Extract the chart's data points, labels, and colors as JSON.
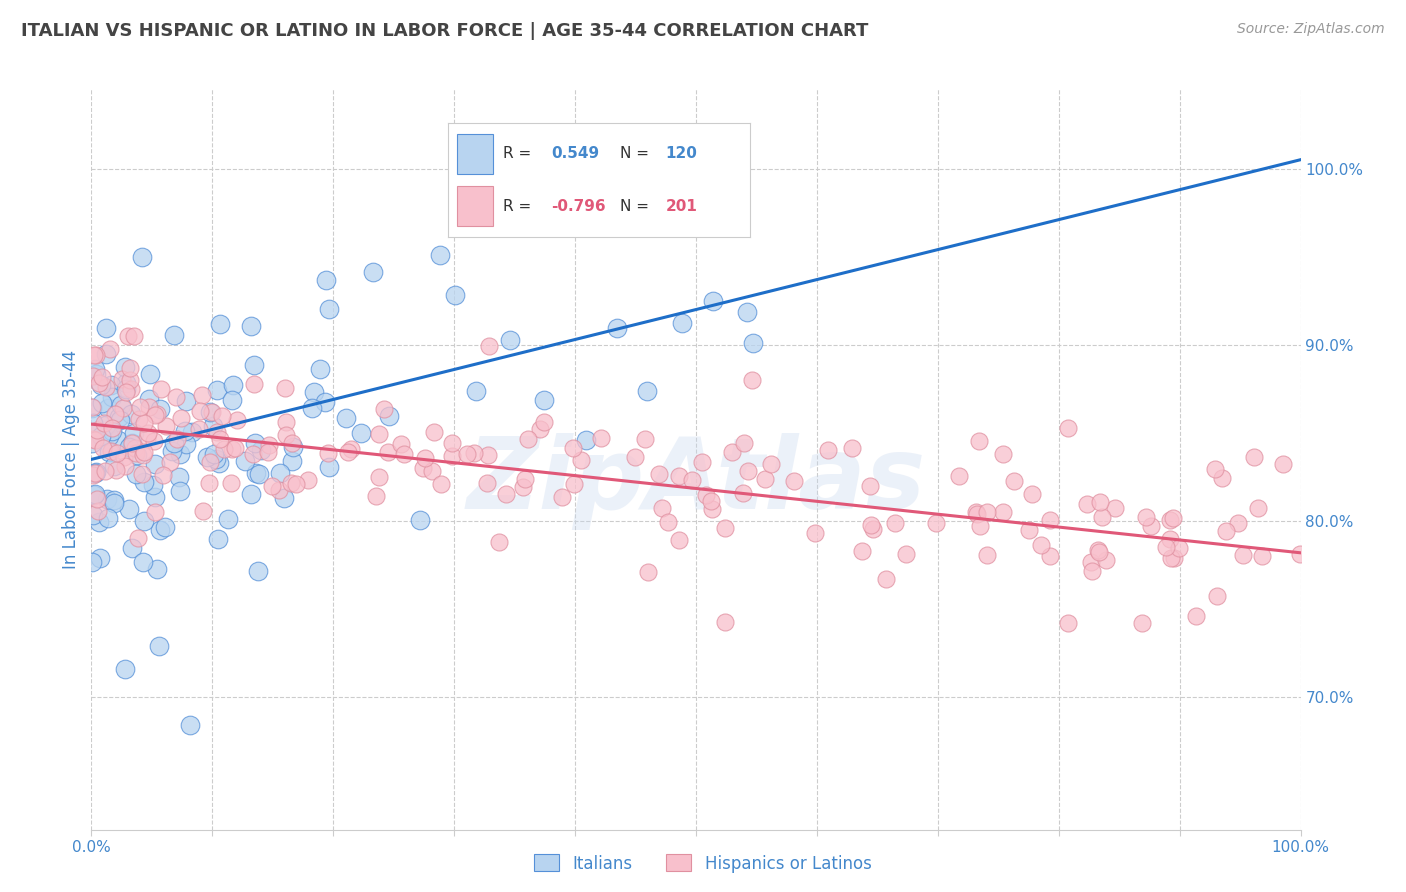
{
  "title": "ITALIAN VS HISPANIC OR LATINO IN LABOR FORCE | AGE 35-44 CORRELATION CHART",
  "source": "Source: ZipAtlas.com",
  "ylabel": "In Labor Force | Age 35-44",
  "xlim": [
    0.0,
    1.0
  ],
  "ylim": [
    0.625,
    1.045
  ],
  "x_ticks": [
    0.0,
    0.1,
    0.2,
    0.3,
    0.4,
    0.5,
    0.6,
    0.7,
    0.8,
    0.9,
    1.0
  ],
  "y_ticks_right": [
    1.0,
    0.9,
    0.8,
    0.7
  ],
  "y_tick_labels_right": [
    "100.0%",
    "90.0%",
    "80.0%",
    "70.0%"
  ],
  "blue_R": 0.549,
  "blue_N": 120,
  "pink_R": -0.796,
  "pink_N": 201,
  "blue_line_color": "#1E6EC8",
  "pink_line_color": "#E05878",
  "blue_scatter_face": "#B8D4F0",
  "blue_scatter_edge": "#5590D8",
  "pink_scatter_face": "#F8C0CC",
  "pink_scatter_edge": "#E090A0",
  "legend_blue_face": "#B8D4F0",
  "legend_blue_edge": "#5590D8",
  "legend_pink_face": "#F8C0CC",
  "legend_pink_edge": "#E090A0",
  "watermark": "ZipAtlas",
  "background_color": "#FFFFFF",
  "grid_color": "#CCCCCC",
  "title_color": "#444444",
  "axis_label_color": "#5599DD",
  "right_label_color": "#4488CC",
  "blue_line_x0": 0.0,
  "blue_line_y0": 0.835,
  "blue_line_x1": 1.0,
  "blue_line_y1": 1.005,
  "pink_line_x0": 0.0,
  "pink_line_y0": 0.855,
  "pink_line_x1": 1.0,
  "pink_line_y1": 0.782,
  "seed_blue": 42,
  "seed_pink": 7
}
